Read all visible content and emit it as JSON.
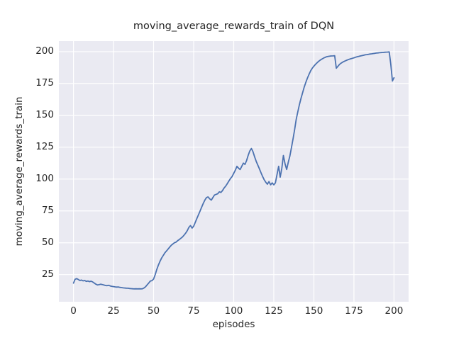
{
  "figure": {
    "title": "moving_average_rewards_train of DQN",
    "xlabel": "episodes",
    "ylabel": "moving_average_rewards_train",
    "colors": {
      "figure_background": "#ffffff",
      "plot_background": "#eaeaf2",
      "gridline": "#ffffff",
      "line": "#4c72b0",
      "text": "#262626"
    }
  },
  "chart_data": {
    "type": "line",
    "title": "moving_average_rewards_train of DQN",
    "xlabel": "episodes",
    "ylabel": "moving_average_rewards_train",
    "x_ticks": [
      0,
      25,
      50,
      75,
      100,
      125,
      150,
      175,
      200
    ],
    "y_ticks": [
      25,
      50,
      75,
      100,
      125,
      150,
      175,
      200
    ],
    "xlim": [
      -9.1,
      209.1
    ],
    "ylim": [
      3.7,
      208.3
    ],
    "grid": true,
    "legend": false,
    "series": [
      {
        "name": "moving_average_rewards_train",
        "color": "#4c72b0",
        "x_start": 0,
        "x_step": 1,
        "y": [
          18.3,
          21.3,
          21.9,
          21.2,
          20.4,
          20.7,
          20.1,
          20.4,
          19.7,
          20.0,
          19.5,
          19.8,
          19.2,
          18.4,
          17.5,
          16.9,
          17.1,
          17.5,
          17.2,
          16.8,
          16.5,
          16.3,
          16.6,
          16.1,
          15.8,
          15.6,
          15.4,
          15.2,
          15.3,
          15.0,
          14.8,
          14.6,
          14.5,
          14.4,
          14.3,
          14.1,
          14.0,
          13.9,
          13.8,
          13.9,
          13.8,
          13.9,
          13.8,
          13.9,
          14.5,
          15.5,
          17.0,
          18.5,
          20.0,
          20.3,
          21.5,
          25.0,
          29.0,
          32.5,
          35.5,
          38.0,
          40.0,
          42.0,
          43.5,
          45.0,
          46.5,
          48.0,
          49.0,
          50.0,
          50.5,
          51.6,
          52.5,
          53.5,
          54.5,
          56.0,
          57.5,
          59.5,
          62.0,
          63.5,
          61.5,
          63.0,
          66.0,
          69.0,
          72.0,
          75.0,
          78.0,
          81.0,
          83.5,
          85.5,
          86.0,
          84.5,
          83.5,
          85.5,
          87.5,
          88.0,
          88.5,
          90.0,
          89.5,
          91.0,
          93.0,
          94.5,
          96.5,
          98.5,
          100.5,
          102.0,
          104.5,
          107.0,
          110.0,
          108.5,
          107.5,
          110.0,
          112.5,
          111.5,
          114.5,
          118.5,
          122.0,
          124.0,
          121.5,
          117.5,
          114.0,
          111.0,
          108.0,
          105.0,
          102.0,
          99.5,
          97.5,
          96.0,
          98.0,
          95.5,
          97.0,
          95.5,
          97.0,
          103.5,
          110.0,
          101.5,
          108.5,
          118.5,
          112.0,
          107.5,
          113.0,
          118.0,
          124.5,
          131.5,
          139.0,
          147.0,
          153.0,
          158.5,
          163.5,
          168.0,
          172.3,
          176.0,
          179.3,
          182.3,
          185.0,
          187.0,
          188.6,
          190.0,
          191.3,
          192.4,
          193.4,
          194.2,
          194.9,
          195.5,
          196.0,
          196.3,
          196.5,
          196.6,
          196.7,
          196.8,
          187.0,
          188.5,
          190.0,
          191.0,
          191.8,
          192.4,
          193.0,
          193.5,
          194.0,
          194.4,
          194.8,
          195.2,
          195.6,
          196.0,
          196.3,
          196.6,
          196.9,
          197.2,
          197.5,
          197.7,
          197.9,
          198.1,
          198.3,
          198.5,
          198.7,
          198.9,
          199.0,
          199.2,
          199.3,
          199.4,
          199.5,
          199.6,
          199.7,
          199.8,
          190.0,
          177.0,
          179.5
        ]
      }
    ]
  }
}
